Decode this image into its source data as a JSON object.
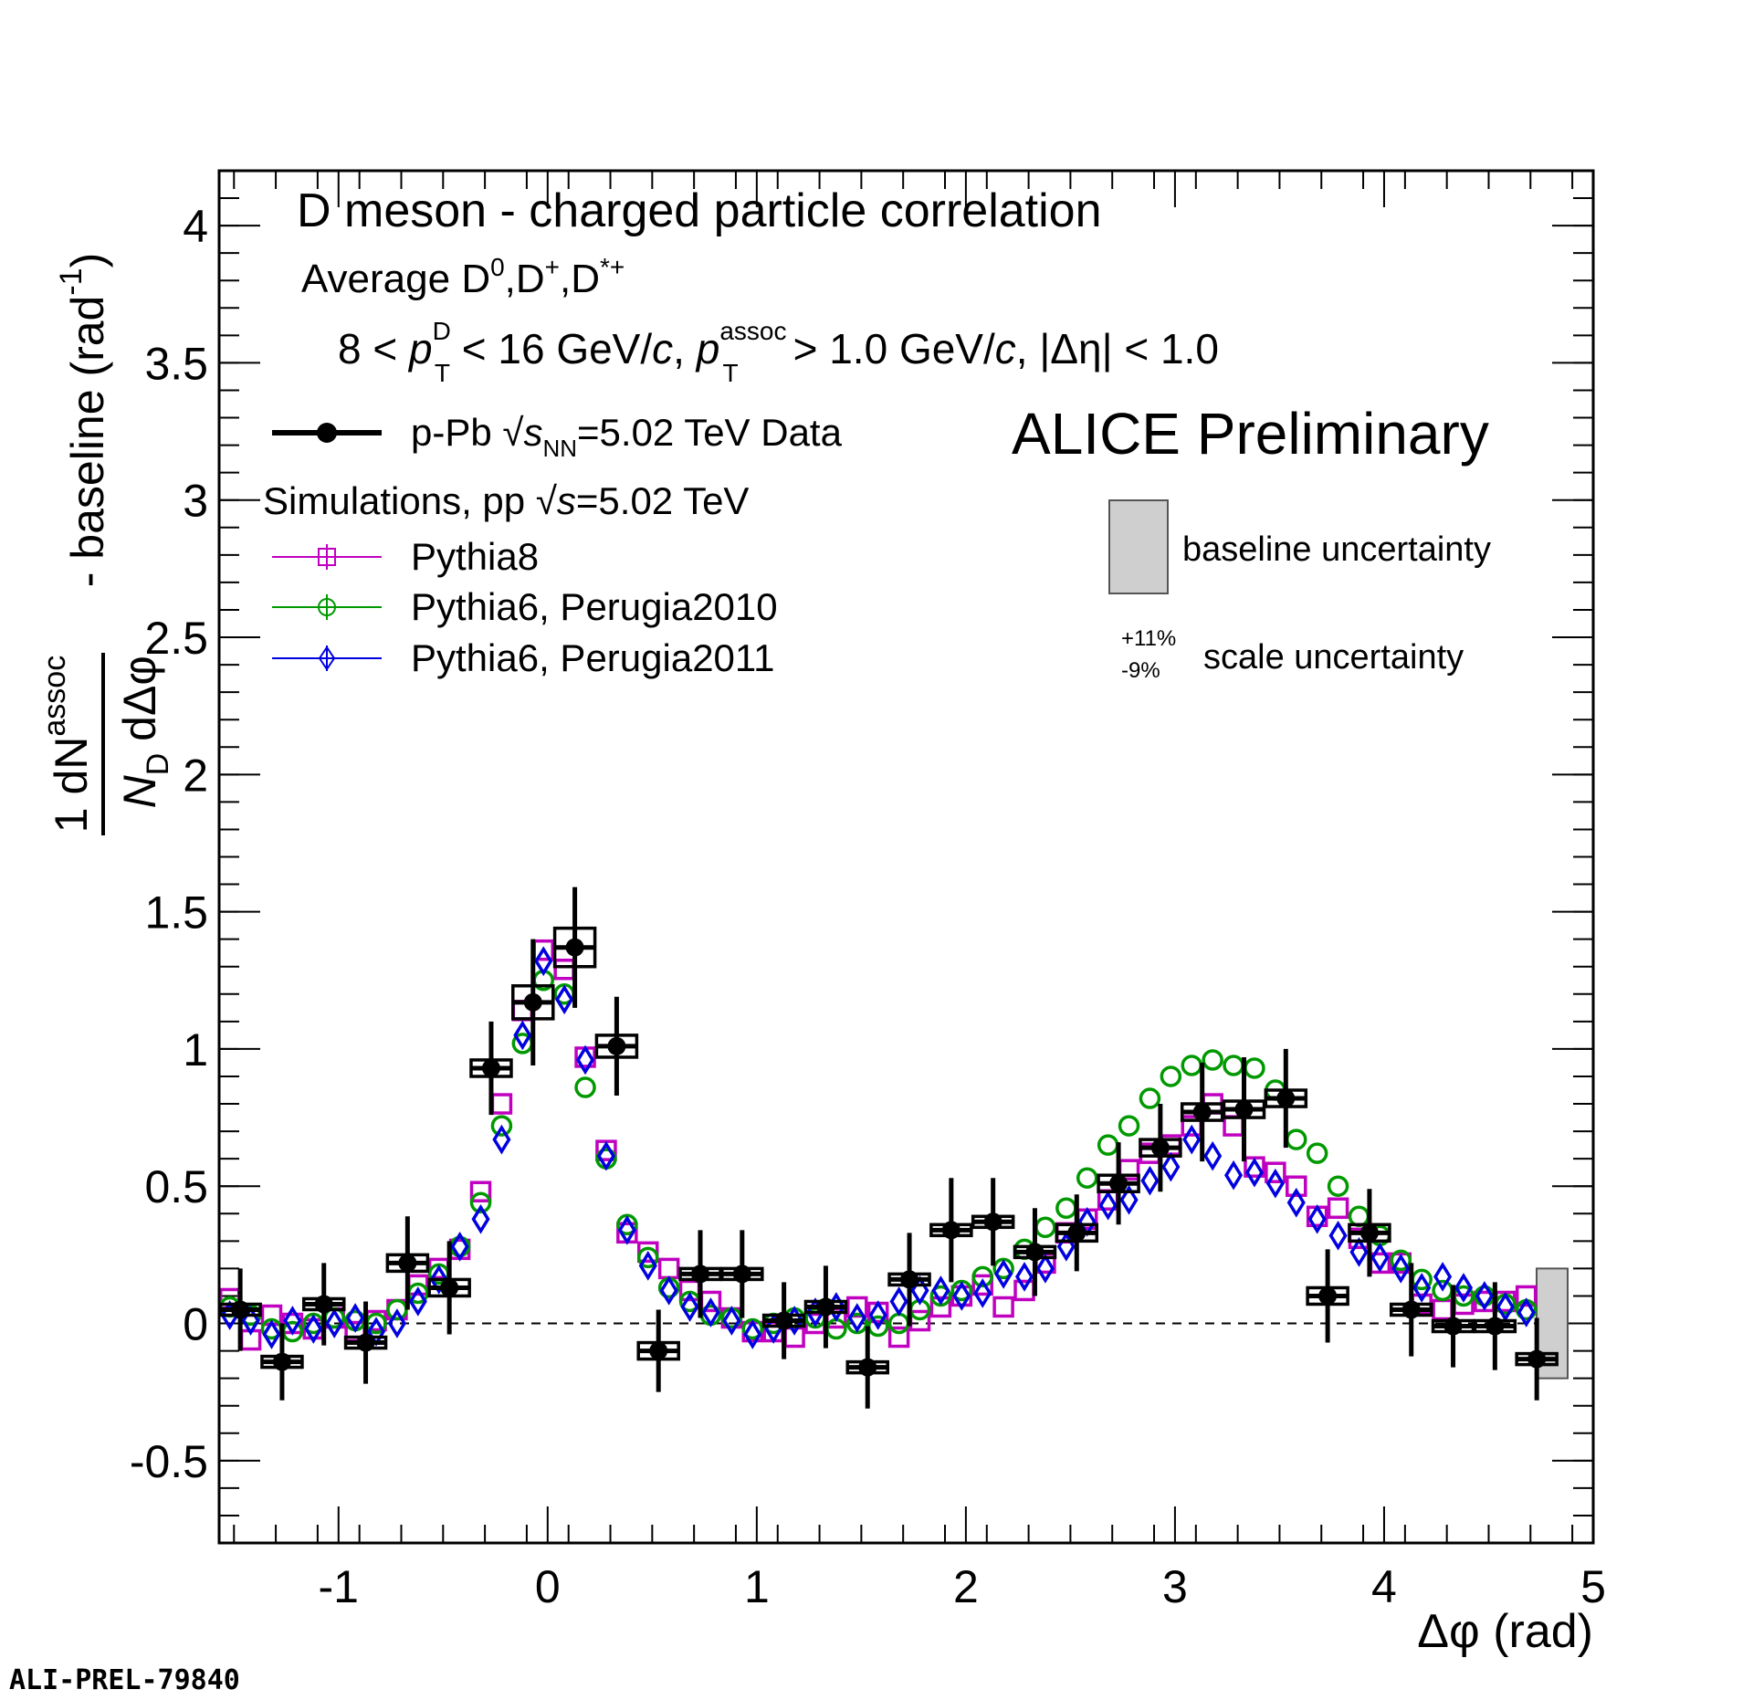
{
  "chart_data": {
    "type": "scatter",
    "title": "D meson  - charged particle correlation",
    "subtitle": "Average D0,D+,D*+",
    "kinematics": "8 < pT(D) < 16 GeV/c, pT(assoc) > 1.0 GeV/c, |Δη| < 1.0",
    "xlabel": "Δφ (rad)",
    "ylabel": "1/N_D dN^assoc/dΔφ - baseline (rad^-1)",
    "xlim": [
      -1.571,
      5.0
    ],
    "ylim": [
      -0.8,
      4.2
    ],
    "x_ticks": [
      "-1",
      "0",
      "1",
      "2",
      "3",
      "4",
      "5"
    ],
    "y_ticks": [
      "-0.5",
      "0",
      "0.5",
      "1",
      "1.5",
      "2",
      "2.5",
      "3",
      "3.5",
      "4"
    ],
    "experiment_label": "ALICE Preliminary",
    "figure_id": "ALI-PREL-79840",
    "baseline_uncertainty": {
      "label": "baseline uncertainty",
      "band": [
        -0.2,
        0.2
      ]
    },
    "scale_uncertainty": {
      "plus": "+11%",
      "minus": "-9%",
      "label": "scale uncertainty"
    },
    "legend": {
      "data": {
        "prefix": "p-Pb ",
        "energy": "=5.02 TeV Data"
      },
      "sim_header": {
        "prefix": "Simulations, pp ",
        "energy": "=5.02 TeV"
      }
    },
    "series": [
      {
        "name": "Pythia8",
        "color": "#c000c0",
        "marker": "open-square",
        "x": [
          -1.52,
          -1.42,
          -1.32,
          -1.22,
          -1.12,
          -1.02,
          -0.92,
          -0.82,
          -0.72,
          -0.62,
          -0.52,
          -0.42,
          -0.32,
          -0.22,
          -0.12,
          -0.02,
          0.08,
          0.18,
          0.28,
          0.38,
          0.48,
          0.58,
          0.68,
          0.78,
          0.88,
          0.98,
          1.08,
          1.18,
          1.28,
          1.38,
          1.48,
          1.58,
          1.68,
          1.78,
          1.88,
          1.98,
          2.08,
          2.18,
          2.28,
          2.38,
          2.48,
          2.58,
          2.68,
          2.78,
          2.88,
          2.98,
          3.08,
          3.18,
          3.28,
          3.38,
          3.48,
          3.58,
          3.68,
          3.78,
          3.88,
          3.98,
          4.08,
          4.18,
          4.28,
          4.38,
          4.48,
          4.58,
          4.68
        ],
        "values": [
          0.09,
          -0.06,
          0.03,
          0.0,
          -0.02,
          0.02,
          -0.03,
          0.01,
          0.05,
          0.14,
          0.2,
          0.27,
          0.48,
          0.8,
          1.14,
          1.36,
          1.29,
          0.97,
          0.63,
          0.33,
          0.26,
          0.2,
          0.12,
          0.08,
          0.02,
          -0.03,
          -0.03,
          -0.05,
          0.0,
          0.02,
          0.06,
          0.04,
          -0.05,
          0.01,
          0.06,
          0.1,
          0.14,
          0.06,
          0.12,
          0.22,
          0.33,
          0.38,
          0.45,
          0.56,
          0.62,
          0.65,
          0.72,
          0.8,
          0.72,
          0.57,
          0.55,
          0.5,
          0.39,
          0.42,
          0.31,
          0.22,
          0.22,
          0.07,
          0.05,
          0.07,
          0.08,
          0.08,
          0.1
        ]
      },
      {
        "name": "Pythia6, Perugia2010",
        "color": "#009900",
        "marker": "open-circle",
        "x": [
          -1.52,
          -1.42,
          -1.32,
          -1.22,
          -1.12,
          -1.02,
          -0.92,
          -0.82,
          -0.72,
          -0.62,
          -0.52,
          -0.42,
          -0.32,
          -0.22,
          -0.12,
          -0.02,
          0.08,
          0.18,
          0.28,
          0.38,
          0.48,
          0.58,
          0.68,
          0.78,
          0.88,
          0.98,
          1.08,
          1.18,
          1.28,
          1.38,
          1.48,
          1.58,
          1.68,
          1.78,
          1.88,
          1.98,
          2.08,
          2.18,
          2.28,
          2.38,
          2.48,
          2.58,
          2.68,
          2.78,
          2.88,
          2.98,
          3.08,
          3.18,
          3.28,
          3.38,
          3.48,
          3.58,
          3.68,
          3.78,
          3.88,
          3.98,
          4.08,
          4.18,
          4.28,
          4.38,
          4.48,
          4.58,
          4.68
        ],
        "values": [
          0.06,
          0.03,
          -0.02,
          -0.03,
          0.0,
          0.02,
          0.01,
          0.0,
          0.05,
          0.11,
          0.18,
          0.28,
          0.44,
          0.72,
          1.02,
          1.25,
          1.2,
          0.86,
          0.6,
          0.36,
          0.24,
          0.13,
          0.08,
          0.03,
          0.02,
          -0.02,
          0.0,
          0.02,
          0.02,
          -0.02,
          0.0,
          -0.01,
          0.0,
          0.05,
          0.1,
          0.12,
          0.17,
          0.2,
          0.27,
          0.35,
          0.42,
          0.53,
          0.65,
          0.72,
          0.82,
          0.9,
          0.94,
          0.96,
          0.94,
          0.93,
          0.85,
          0.67,
          0.62,
          0.5,
          0.39,
          0.32,
          0.23,
          0.16,
          0.12,
          0.1,
          0.1,
          0.07,
          0.05
        ]
      },
      {
        "name": "Pythia6, Perugia2011",
        "color": "#0000e0",
        "marker": "open-diamond",
        "x": [
          -1.52,
          -1.42,
          -1.32,
          -1.22,
          -1.12,
          -1.02,
          -0.92,
          -0.82,
          -0.72,
          -0.62,
          -0.52,
          -0.42,
          -0.32,
          -0.22,
          -0.12,
          -0.02,
          0.08,
          0.18,
          0.28,
          0.38,
          0.48,
          0.58,
          0.68,
          0.78,
          0.88,
          0.98,
          1.08,
          1.18,
          1.28,
          1.38,
          1.48,
          1.58,
          1.68,
          1.78,
          1.88,
          1.98,
          2.08,
          2.18,
          2.28,
          2.38,
          2.48,
          2.58,
          2.68,
          2.78,
          2.88,
          2.98,
          3.08,
          3.18,
          3.28,
          3.38,
          3.48,
          3.58,
          3.68,
          3.78,
          3.88,
          3.98,
          4.08,
          4.18,
          4.28,
          4.38,
          4.48,
          4.58,
          4.68
        ],
        "values": [
          0.03,
          0.01,
          -0.04,
          0.01,
          -0.02,
          0.0,
          0.02,
          -0.03,
          0.0,
          0.08,
          0.16,
          0.28,
          0.38,
          0.67,
          1.05,
          1.32,
          1.18,
          0.96,
          0.61,
          0.34,
          0.21,
          0.12,
          0.06,
          0.04,
          0.01,
          -0.04,
          -0.02,
          0.01,
          0.04,
          0.06,
          0.02,
          0.03,
          0.08,
          0.12,
          0.12,
          0.1,
          0.11,
          0.18,
          0.17,
          0.2,
          0.28,
          0.37,
          0.43,
          0.45,
          0.52,
          0.57,
          0.67,
          0.61,
          0.54,
          0.55,
          0.51,
          0.44,
          0.38,
          0.32,
          0.26,
          0.24,
          0.2,
          0.13,
          0.17,
          0.13,
          0.1,
          0.06,
          0.04
        ]
      },
      {
        "name": "p-Pb √sNN=5.02 TeV Data",
        "color": "#000000",
        "marker": "filled-circle",
        "x": [
          -1.47,
          -1.27,
          -1.07,
          -0.87,
          -0.67,
          -0.47,
          -0.27,
          -0.07,
          0.13,
          0.33,
          0.53,
          0.73,
          0.93,
          1.13,
          1.33,
          1.53,
          1.73,
          1.93,
          2.13,
          2.33,
          2.53,
          2.73,
          2.93,
          3.13,
          3.33,
          3.53,
          3.73,
          3.93,
          4.13,
          4.33,
          4.53,
          4.73
        ],
        "values": [
          0.05,
          -0.14,
          0.07,
          -0.07,
          0.22,
          0.13,
          0.93,
          1.17,
          1.37,
          1.01,
          -0.1,
          0.18,
          0.18,
          0.01,
          0.06,
          -0.16,
          0.16,
          0.34,
          0.37,
          0.26,
          0.33,
          0.51,
          0.64,
          0.77,
          0.78,
          0.82,
          0.1,
          0.33,
          0.05,
          -0.01,
          -0.01,
          -0.13
        ],
        "stat_err": [
          0.15,
          0.14,
          0.15,
          0.15,
          0.17,
          0.17,
          0.17,
          0.23,
          0.22,
          0.18,
          0.15,
          0.16,
          0.16,
          0.14,
          0.15,
          0.15,
          0.17,
          0.19,
          0.16,
          0.16,
          0.14,
          0.15,
          0.16,
          0.18,
          0.19,
          0.18,
          0.17,
          0.16,
          0.17,
          0.15,
          0.16,
          0.15
        ],
        "sys_box": [
          0.02,
          0.02,
          0.02,
          0.02,
          0.03,
          0.03,
          0.03,
          0.06,
          0.07,
          0.04,
          0.03,
          0.02,
          0.02,
          0.02,
          0.02,
          0.02,
          0.02,
          0.02,
          0.02,
          0.02,
          0.03,
          0.03,
          0.03,
          0.03,
          0.03,
          0.03,
          0.03,
          0.03,
          0.02,
          0.02,
          0.02,
          0.02
        ]
      }
    ]
  }
}
